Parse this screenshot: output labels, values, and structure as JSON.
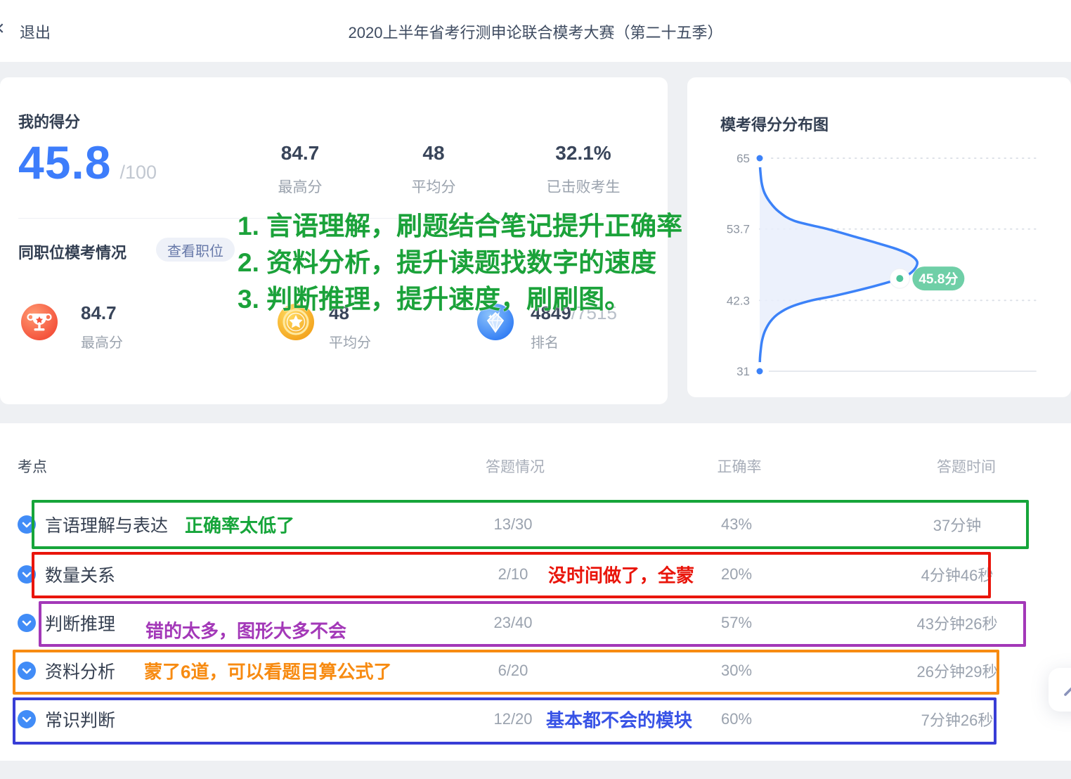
{
  "header": {
    "close_icon": "×",
    "exit_label": "退出",
    "title": "2020上半年省考行测申论联合模考大赛（第二十五季）"
  },
  "score_card": {
    "title": "我的得分",
    "score": "45.8",
    "denominator": "/100",
    "summary_stats": [
      {
        "value": "84.7",
        "label": "最高分"
      },
      {
        "value": "48",
        "label": "平均分"
      },
      {
        "value": "32.1%",
        "label": "已击败考生"
      }
    ],
    "position": {
      "title": "同职位模考情况",
      "view_button": "查看职位",
      "stats": [
        {
          "icon": "trophy-icon",
          "value": "84.7",
          "suffix": "",
          "label": "最高分"
        },
        {
          "icon": "medal-icon",
          "value": "48",
          "suffix": "",
          "label": "平均分"
        },
        {
          "icon": "gem-icon",
          "value": "4849",
          "suffix": "/7515",
          "label": "排名"
        }
      ]
    }
  },
  "notes": {
    "lines": [
      "1. 言语理解，刷题结合笔记提升正确率",
      "2. 资料分析，提升读题找数字的速度",
      "3. 判断推理，提升速度，刷刷图。"
    ]
  },
  "distribution_card": {
    "title": "模考得分分布图"
  },
  "chart_data": {
    "type": "area",
    "title": "模考得分分布图",
    "orientation": "score on vertical axis, relative density on horizontal axis",
    "ylim": [
      31,
      65
    ],
    "y_ticks": [
      65,
      53.7,
      42.3,
      31
    ],
    "grid": "dashed horizontal gridlines, solid baseline at 31",
    "marker": {
      "score": 45.8,
      "density": 0.89,
      "label": "45.8分"
    },
    "series": [
      {
        "name": "score-distribution",
        "points": [
          [
            65,
            0
          ],
          [
            63,
            0.004
          ],
          [
            61,
            0.013
          ],
          [
            59.5,
            0.03
          ],
          [
            58,
            0.065
          ],
          [
            56.5,
            0.12
          ],
          [
            55,
            0.22
          ],
          [
            53.7,
            0.43
          ],
          [
            52.5,
            0.6
          ],
          [
            51.5,
            0.74
          ],
          [
            50.5,
            0.87
          ],
          [
            49.5,
            0.96
          ],
          [
            48.5,
            1.0
          ],
          [
            47.5,
            0.99
          ],
          [
            46.5,
            0.95
          ],
          [
            45.8,
            0.89
          ],
          [
            45,
            0.79
          ],
          [
            44,
            0.64
          ],
          [
            43,
            0.47
          ],
          [
            42.3,
            0.33
          ],
          [
            41.3,
            0.2
          ],
          [
            40.2,
            0.12
          ],
          [
            39,
            0.07
          ],
          [
            37.5,
            0.035
          ],
          [
            36,
            0.016
          ],
          [
            34.5,
            0.007
          ],
          [
            33,
            0.002
          ],
          [
            31,
            0
          ]
        ]
      }
    ]
  },
  "table": {
    "columns": [
      "考点",
      "答题情况",
      "正确率",
      "答题时间"
    ],
    "rows": [
      {
        "name": "言语理解与表达",
        "answers": "13/30",
        "accuracy": "43%",
        "time": "37分钟",
        "annotation": "正确率太低了",
        "annotation_color": "#16a53a",
        "box_color": "#16a53a"
      },
      {
        "name": "数量关系",
        "answers": "2/10",
        "accuracy": "20%",
        "time": "4分钟46秒",
        "annotation": "没时间做了，全蒙",
        "annotation_color": "#e9150b",
        "box_color": "#e9150b"
      },
      {
        "name": "判断推理",
        "answers": "23/40",
        "accuracy": "57%",
        "time": "43分钟26秒",
        "annotation": "错的太多，图形大多不会",
        "annotation_color": "#a338b8",
        "box_color": "#a338b8"
      },
      {
        "name": "资料分析",
        "answers": "6/20",
        "accuracy": "30%",
        "time": "26分钟29秒",
        "annotation": "蒙了6道，可以看题目算公式了",
        "annotation_color": "#f78b12",
        "box_color": "#f78b12"
      },
      {
        "name": "常识判断",
        "answers": "12/20",
        "accuracy": "60%",
        "time": "7分钟26秒",
        "annotation": "基本都不会的模块",
        "annotation_color": "#3853e6",
        "box_color": "#383dd6"
      }
    ]
  },
  "colors": {
    "score_blue": "#3d7dfb",
    "chart_line": "#3c82f8",
    "chart_fill": "#e9effc",
    "marker_pill_green": "#6fcfa7",
    "marker_dot_green": "#4fc49a",
    "chevron_circle_blue": "#418cf7",
    "note_green": "#1ba23a",
    "grid_dash": "#dde1e8",
    "axis_line": "#e6e9ee",
    "tick_text": "#8d95a1"
  }
}
